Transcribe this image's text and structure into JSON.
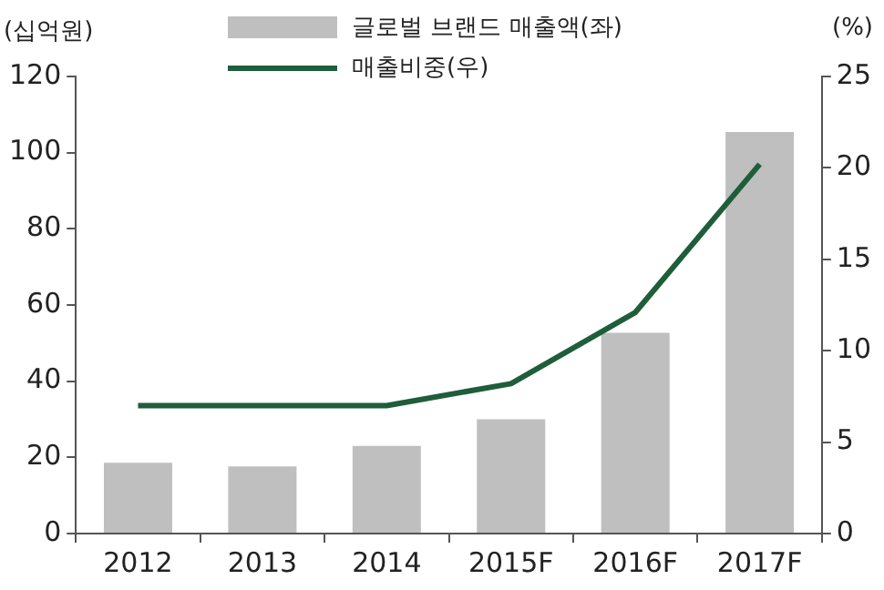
{
  "chart_data": {
    "type": "bar",
    "ylabel": "(십억원)",
    "y2label": "(%)",
    "categories": [
      "2012",
      "2013",
      "2014",
      "2015F",
      "2016F",
      "2017F"
    ],
    "series": [
      {
        "name": "글로벌 브랜드 매출액(좌)",
        "color": "#bfbfbf",
        "values": [
          18.6,
          17.6,
          23,
          30,
          52.7,
          105.4
        ]
      },
      {
        "name": "매출비중(우)",
        "type": "line",
        "axis": "y2",
        "color": "#1e5e3a",
        "values": [
          7,
          7,
          7,
          8.2,
          12.1,
          20.2
        ]
      }
    ],
    "ylim": [
      0,
      120
    ],
    "yticks": [
      0,
      20,
      40,
      60,
      80,
      100,
      120
    ],
    "y2lim": [
      0,
      25
    ],
    "y2ticks": [
      0,
      5,
      10,
      15,
      20,
      25
    ],
    "grid": false,
    "legend": "top",
    "marker": "none"
  }
}
